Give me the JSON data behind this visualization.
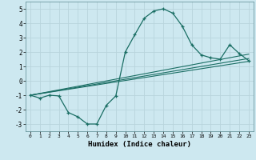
{
  "xlabel": "Humidex (Indice chaleur)",
  "xlim": [
    -0.5,
    23.5
  ],
  "ylim": [
    -3.5,
    5.5
  ],
  "xticks": [
    0,
    1,
    2,
    3,
    4,
    5,
    6,
    7,
    8,
    9,
    10,
    11,
    12,
    13,
    14,
    15,
    16,
    17,
    18,
    19,
    20,
    21,
    22,
    23
  ],
  "yticks": [
    -3,
    -2,
    -1,
    0,
    1,
    2,
    3,
    4,
    5
  ],
  "bg_color": "#cde8f0",
  "grid_color": "#b8d4dc",
  "line_color": "#1a6e64",
  "curve_x": [
    0,
    1,
    2,
    3,
    4,
    5,
    6,
    7,
    8,
    9,
    10,
    11,
    12,
    13,
    14,
    15,
    16,
    17,
    18,
    19,
    20,
    21,
    22,
    23
  ],
  "curve_y": [
    -1.0,
    -1.2,
    -1.0,
    -1.05,
    -2.2,
    -2.5,
    -3.0,
    -3.0,
    -1.7,
    -1.05,
    2.0,
    3.2,
    4.35,
    4.85,
    5.0,
    4.7,
    3.8,
    2.5,
    1.8,
    1.6,
    1.5,
    2.5,
    1.9,
    1.4
  ],
  "line1_x": [
    0,
    23
  ],
  "line1_y": [
    -1.0,
    1.35
  ],
  "line2_x": [
    0,
    23
  ],
  "line2_y": [
    -1.0,
    1.55
  ],
  "line3_x": [
    0,
    23
  ],
  "line3_y": [
    -1.0,
    1.85
  ]
}
